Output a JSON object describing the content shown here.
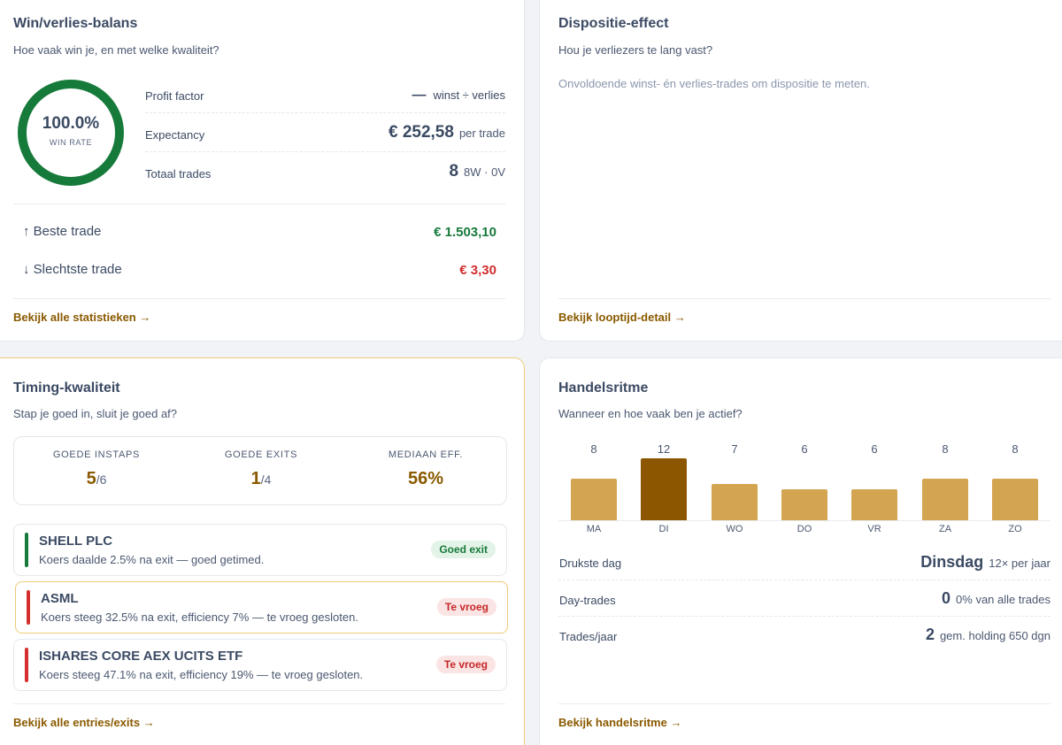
{
  "winloss": {
    "title": "Win/verlies-balans",
    "subtitle": "Hoe vaak win je, en met welke kwaliteit?",
    "win_rate_value": "100.0%",
    "win_rate_label": "WIN RATE",
    "win_rate_fraction": 1.0,
    "profit_factor_label": "Profit factor",
    "profit_factor_value": "—",
    "profit_factor_unit": "winst ÷ verlies",
    "expectancy_label": "Expectancy",
    "expectancy_value": "€ 252,58",
    "expectancy_unit": "per trade",
    "total_trades_label": "Totaal trades",
    "total_trades_value": "8",
    "total_trades_unit": "8W · 0V",
    "best_label": "Beste trade",
    "best_value": "€ 1.503,10",
    "worst_label": "Slechtste trade",
    "worst_value": "€ 3,30",
    "link": "Bekijk alle statistieken →",
    "colors": {
      "ring": "#167a3a",
      "best": "#167a3a",
      "worst": "#d32f2f"
    }
  },
  "disposition": {
    "title": "Dispositie-effect",
    "subtitle": "Hou je verliezers te lang vast?",
    "empty_text": "Onvoldoende winst- én verlies-trades om dispositie te meten.",
    "link": "Bekijk looptijd-detail →"
  },
  "timing": {
    "title": "Timing-kwaliteit",
    "subtitle": "Stap je goed in, sluit je goed af?",
    "kpis": [
      {
        "label": "GOEDE INSTAPS",
        "value": "5",
        "denominator": "/6"
      },
      {
        "label": "GOEDE EXITS",
        "value": "1",
        "denominator": "/4"
      },
      {
        "label": "MEDIAAN EFF.",
        "value": "56%",
        "denominator": ""
      }
    ],
    "trades": [
      {
        "name": "SHELL PLC",
        "desc": "Koers daalde 2.5% na exit — goed getimed.",
        "badge": "Goed exit"
      },
      {
        "name": "ASML",
        "desc": "Koers steeg 32.5% na exit, efficiency 7% — te vroeg gesloten.",
        "badge": "Te vroeg"
      },
      {
        "name": "ISHARES CORE AEX UCITS ETF",
        "desc": "Koers steeg 47.1% na exit, efficiency 19% — te vroeg gesloten.",
        "badge": "Te vroeg"
      }
    ],
    "link": "Bekijk alle entries/exits →"
  },
  "rhythm": {
    "title": "Handelsritme",
    "subtitle": "Wanneer en hoe vaak ben je actief?",
    "busiest_label": "Drukste dag",
    "busiest_value": "Dinsdag",
    "busiest_unit": "12× per jaar",
    "daytrades_label": "Day-trades",
    "daytrades_value": "0",
    "daytrades_unit": "0% van alle trades",
    "peryear_label": "Trades/jaar",
    "peryear_value": "2",
    "peryear_unit": "gem. holding 650 dgn",
    "link": "Bekijk handelsritme →"
  },
  "chart_data": {
    "type": "bar",
    "categories": [
      "MA",
      "DI",
      "WO",
      "DO",
      "VR",
      "ZA",
      "ZO"
    ],
    "values": [
      8,
      12,
      7,
      6,
      6,
      8,
      8
    ],
    "highlight_index": 1,
    "colors": {
      "bar": "#d4a550",
      "highlight": "#8c5600"
    }
  }
}
